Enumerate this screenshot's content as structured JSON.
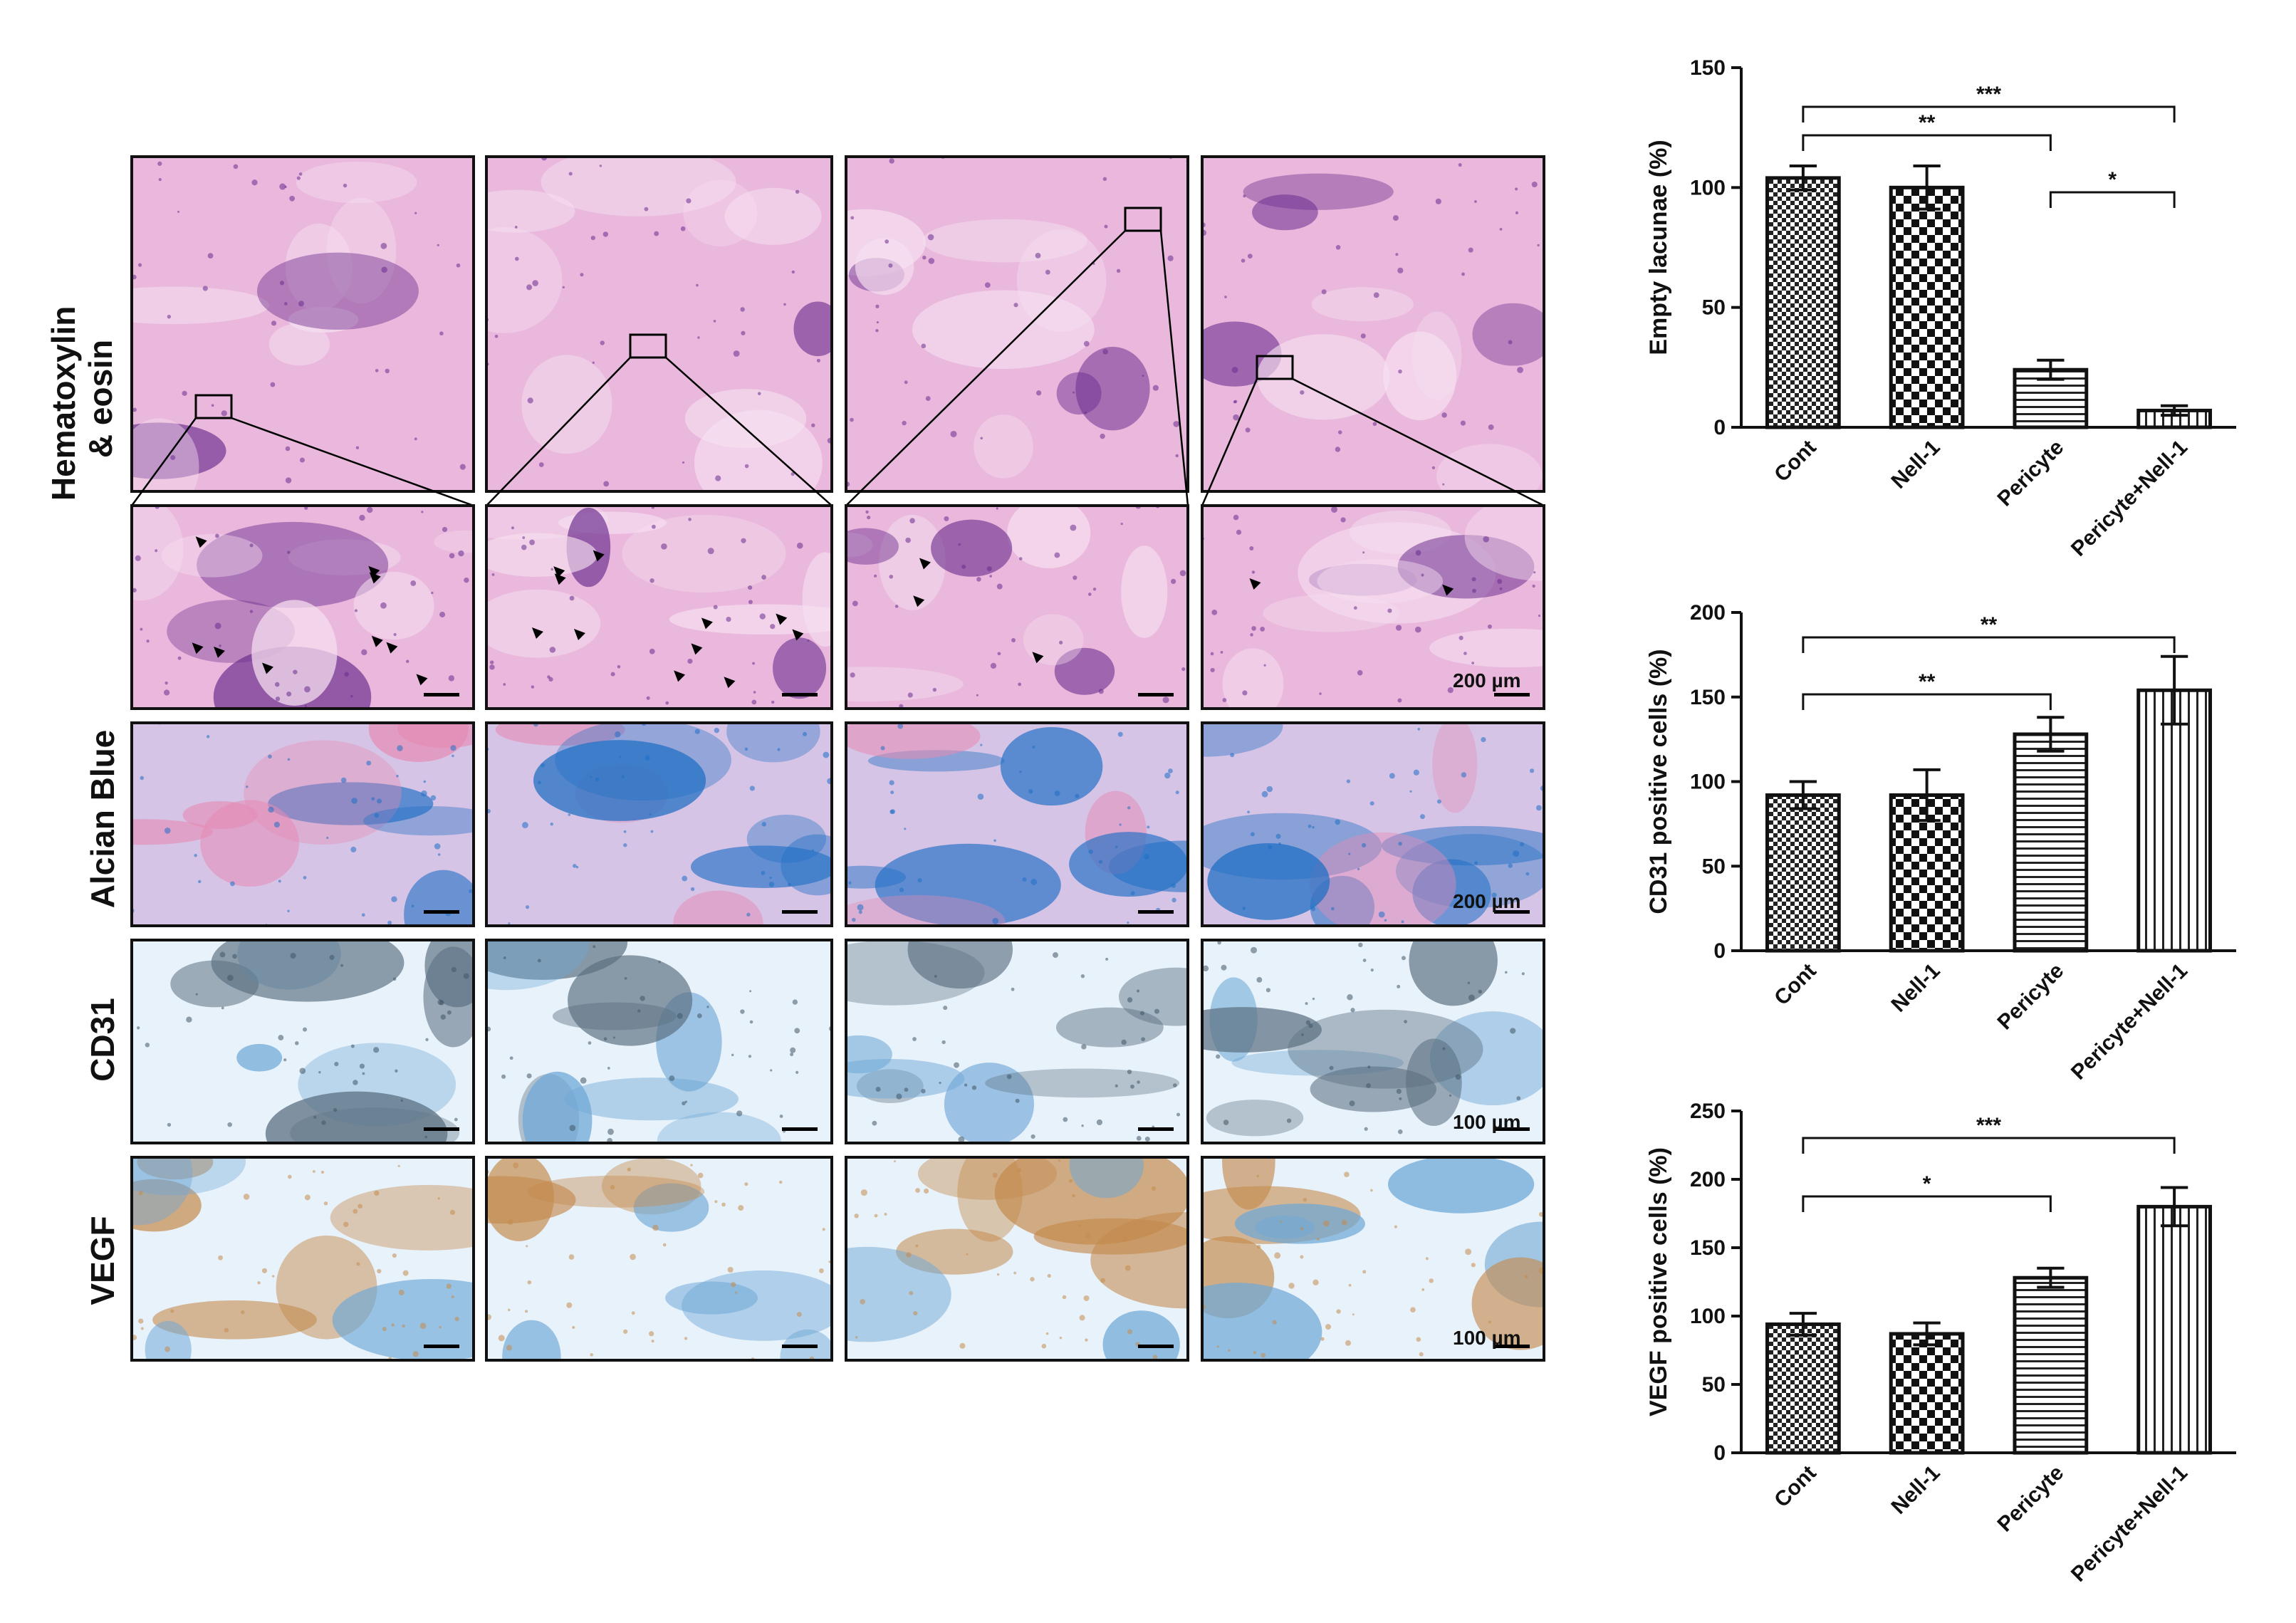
{
  "rows": [
    {
      "label_lines": [
        "Hematoxylin",
        "& eosin"
      ]
    },
    {
      "label_lines": [
        "Alcian Blue"
      ]
    },
    {
      "label_lines": [
        "CD31"
      ]
    },
    {
      "label_lines": [
        "VEGF"
      ]
    }
  ],
  "scale_bars": [
    {
      "row": "he_zoom",
      "text": "200 µm"
    },
    {
      "row": "alcian",
      "text": "200 µm"
    },
    {
      "row": "cd31",
      "text": "100 µm"
    },
    {
      "row": "vegf",
      "text": "100 µm"
    }
  ],
  "stain_colors": {
    "he_bg": "#e9b8dc",
    "he_dark": "#6a2c8e",
    "he_light": "#f6dff0",
    "alcian_bg": "#d6c4e6",
    "alcian_blue": "#1f6fc4",
    "alcian_pink": "#e58bb4",
    "ihc_bg": "#e8f2fb",
    "ihc_blue": "#6fa8d6",
    "ihc_brown": "#c48a4c"
  },
  "chart_data": [
    {
      "type": "bar",
      "categories": [
        "Cont",
        "Nell-1",
        "Pericyte",
        "Pericyte+Nell-1"
      ],
      "values": [
        104,
        100,
        24,
        7
      ],
      "errors": [
        5,
        9,
        4,
        2
      ],
      "patterns": [
        "checker-small",
        "checker-large",
        "horizontal-lines",
        "vertical-lines"
      ],
      "ylabel": "Empty lacunae (%)",
      "ylim": [
        0,
        150
      ],
      "yticks": [
        0,
        50,
        100,
        150
      ],
      "significance": [
        {
          "from": "Cont",
          "to": "Pericyte+Nell-1",
          "label": "***"
        },
        {
          "from": "Cont",
          "to": "Pericyte",
          "label": "**"
        },
        {
          "from": "Pericyte",
          "to": "Pericyte+Nell-1",
          "label": "*"
        }
      ]
    },
    {
      "type": "bar",
      "categories": [
        "Cont",
        "Nell-1",
        "Pericyte",
        "Pericyte+Nell-1"
      ],
      "values": [
        92,
        92,
        128,
        154
      ],
      "errors": [
        8,
        15,
        10,
        20
      ],
      "patterns": [
        "checker-small",
        "checker-large",
        "horizontal-lines",
        "vertical-lines"
      ],
      "ylabel": "CD31 positive cells (%)",
      "ylim": [
        0,
        200
      ],
      "yticks": [
        0,
        50,
        100,
        150,
        200
      ],
      "significance": [
        {
          "from": "Cont",
          "to": "Pericyte+Nell-1",
          "label": "**"
        },
        {
          "from": "Cont",
          "to": "Pericyte",
          "label": "**"
        }
      ]
    },
    {
      "type": "bar",
      "categories": [
        "Cont",
        "Nell-1",
        "Pericyte",
        "Pericyte+Nell-1"
      ],
      "values": [
        94,
        87,
        128,
        180
      ],
      "errors": [
        8,
        8,
        7,
        14
      ],
      "patterns": [
        "checker-small",
        "checker-large",
        "horizontal-lines",
        "vertical-lines"
      ],
      "ylabel": "VEGF positive cells (%)",
      "ylim": [
        0,
        250
      ],
      "yticks": [
        0,
        50,
        100,
        150,
        200,
        250
      ],
      "significance": [
        {
          "from": "Cont",
          "to": "Pericyte+Nell-1",
          "label": "***"
        },
        {
          "from": "Cont",
          "to": "Pericyte",
          "label": "*"
        }
      ]
    }
  ]
}
